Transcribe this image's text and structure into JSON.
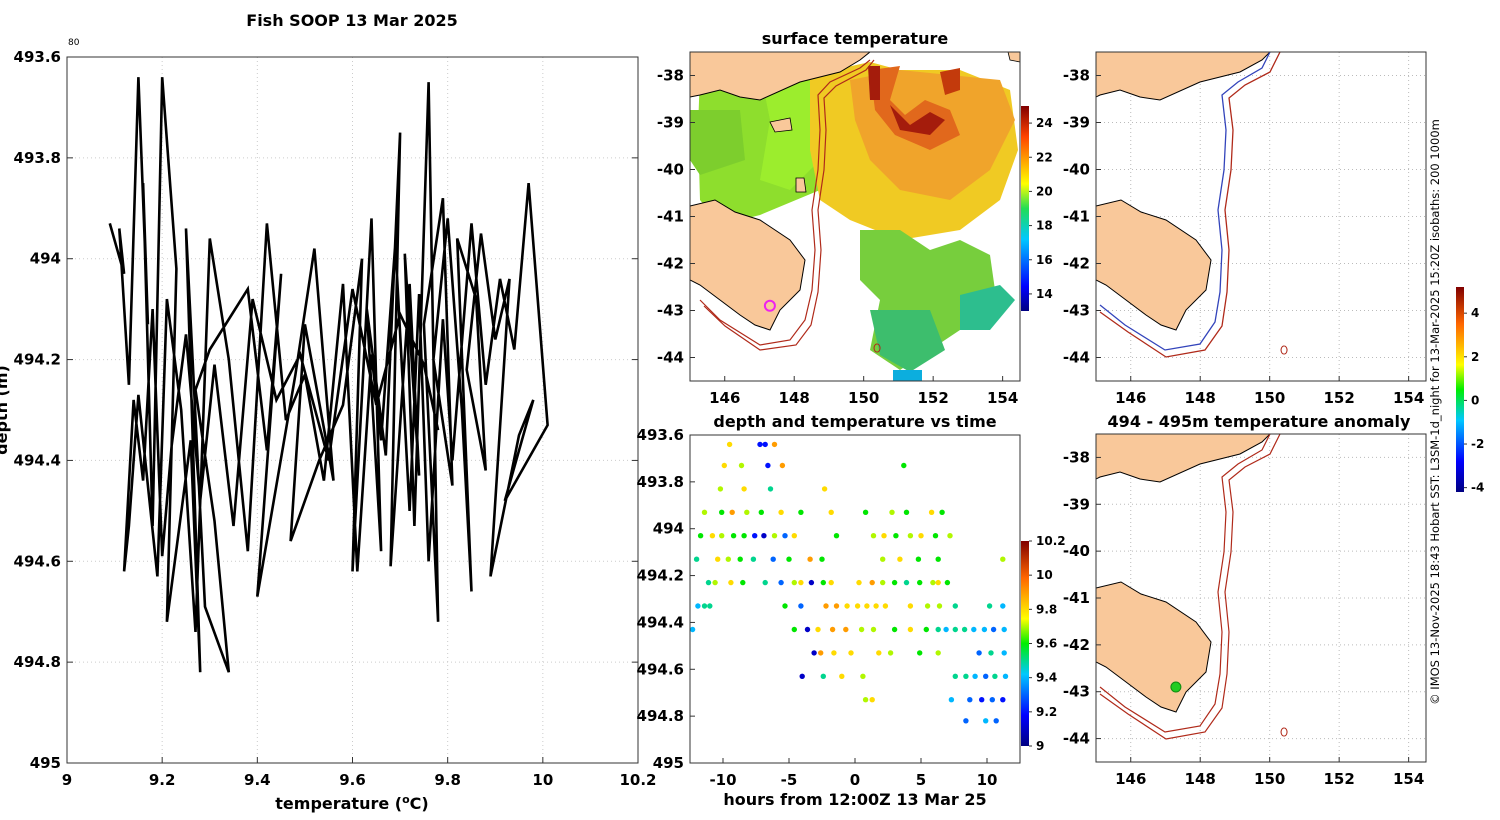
{
  "figure": {
    "credit": "© IMOS 13-Nov-2025 18:43 Hobart SST: L3SM-1d_night for 13-Mar-2025 15:20Z isobaths: 200  1000m",
    "exponent_label": "80"
  },
  "colors": {
    "land": "#f9c89a",
    "isobath_200": "#3344bb",
    "isobath_1000": "#b02a1a",
    "track": "#000000",
    "marker": "#ee22ee"
  },
  "chart_data": [
    {
      "id": "profile",
      "type": "line",
      "title": "Fish SOOP 13 Mar 2025",
      "xlabel": "temperature (",
      "xlabel_unit_sup": "o",
      "xlabel_unit": "C)",
      "ylabel": "depth (m)",
      "xlim": [
        9,
        10.2
      ],
      "ylim": [
        493.6,
        495
      ],
      "y_reversed": true,
      "grid": true,
      "x_ticks": [
        "9",
        "9.2",
        "9.4",
        "9.6",
        "9.8",
        "10",
        "10.2"
      ],
      "y_ticks": [
        "493.6",
        "493.8",
        "494",
        "494.2",
        "494.4",
        "494.6",
        "494.8",
        "495"
      ],
      "x": [
        9.09,
        9.12,
        9.11,
        9.13,
        9.15,
        9.17,
        9.16,
        9.18,
        9.2,
        9.23,
        9.21,
        9.26,
        9.28,
        9.25,
        9.29,
        9.34,
        9.31,
        9.27,
        9.3,
        9.38,
        9.42,
        9.45,
        9.4,
        9.48,
        9.52,
        9.56,
        9.5,
        9.47,
        9.53,
        9.58,
        9.62,
        9.6,
        9.64,
        9.66,
        9.63,
        9.67,
        9.7,
        9.68,
        9.72,
        9.74,
        9.71,
        9.73,
        9.76,
        9.78,
        9.75,
        9.79,
        9.81,
        9.77,
        9.8,
        9.83,
        9.85,
        9.82,
        9.86,
        9.88,
        9.84,
        9.87,
        9.9,
        9.93,
        9.89,
        9.95,
        9.98,
        9.92,
        10.01,
        9.97,
        9.94,
        9.91,
        9.88,
        9.85,
        9.81,
        9.79,
        9.76,
        9.74,
        9.72,
        9.69,
        9.66,
        9.64,
        9.61,
        9.58,
        9.54,
        9.5,
        9.46,
        9.42,
        9.38,
        9.34,
        9.3,
        9.27,
        9.24,
        9.21,
        9.19,
        9.17,
        9.15,
        9.13,
        9.12,
        9.14,
        9.16,
        9.18,
        9.2,
        9.22,
        9.25,
        9.28,
        9.31,
        9.35,
        9.39,
        9.44,
        9.49,
        9.55,
        9.6,
        9.65,
        9.7,
        9.75,
        9.78
      ],
      "y": [
        493.93,
        494.03,
        493.94,
        494.25,
        493.64,
        494.13,
        493.85,
        494.53,
        493.64,
        494.02,
        494.72,
        494.36,
        494.82,
        493.94,
        494.69,
        494.82,
        494.52,
        494.26,
        494.18,
        494.06,
        494.38,
        494.03,
        494.67,
        494.23,
        493.98,
        494.44,
        494.13,
        494.56,
        494.4,
        494.29,
        494.0,
        494.62,
        493.92,
        494.58,
        494.1,
        494.39,
        493.75,
        494.61,
        494.05,
        494.43,
        493.99,
        494.53,
        493.65,
        494.72,
        494.13,
        493.88,
        494.45,
        494.2,
        493.92,
        494.3,
        494.66,
        493.96,
        494.08,
        494.42,
        494.22,
        493.95,
        494.16,
        494.04,
        494.63,
        494.35,
        494.28,
        494.48,
        494.33,
        493.85,
        494.18,
        494.04,
        494.25,
        493.93,
        494.4,
        494.12,
        494.6,
        494.07,
        494.5,
        493.97,
        494.36,
        494.19,
        494.62,
        494.05,
        494.44,
        494.23,
        494.32,
        493.93,
        494.58,
        494.2,
        493.96,
        494.74,
        494.3,
        494.08,
        494.63,
        494.45,
        494.27,
        494.53,
        494.62,
        494.28,
        494.44,
        494.1,
        494.59,
        494.37,
        494.15,
        494.48,
        494.21,
        494.53,
        494.08,
        494.28,
        494.19,
        494.4,
        494.06,
        494.29,
        494.11,
        494.21,
        494.34
      ]
    },
    {
      "id": "sst_map",
      "type": "heatmap",
      "title": "surface temperature",
      "xlim": [
        145,
        154.5
      ],
      "ylim": [
        -44.5,
        -37.5
      ],
      "x_ticks": [
        "146",
        "148",
        "150",
        "152",
        "154"
      ],
      "y_ticks": [
        "-38",
        "-39",
        "-40",
        "-41",
        "-42",
        "-43",
        "-44"
      ],
      "colorbar": {
        "range": [
          13,
          25
        ],
        "ticks": [
          "14",
          "16",
          "18",
          "20",
          "22",
          "24"
        ]
      },
      "marker_position": {
        "lon": 147.3,
        "lat": -42.9
      }
    },
    {
      "id": "isobath_map",
      "type": "map",
      "title": "",
      "xlim": [
        145,
        154.5
      ],
      "ylim": [
        -44.5,
        -37.5
      ],
      "x_ticks": [
        "146",
        "148",
        "150",
        "152",
        "154"
      ],
      "y_ticks": [
        "-38",
        "-39",
        "-40",
        "-41",
        "-42",
        "-43",
        "-44"
      ]
    },
    {
      "id": "time_depth",
      "type": "scatter",
      "title": "depth and temperature vs time",
      "xlabel": "hours from 12:00Z 13 Mar 25",
      "ylabel": "",
      "xlim": [
        -12.5,
        12.5
      ],
      "ylim": [
        493.6,
        495
      ],
      "y_reversed": true,
      "x_ticks": [
        "-10",
        "-5",
        "0",
        "5",
        "10"
      ],
      "y_ticks": [
        "493.6",
        "493.8",
        "494",
        "494.2",
        "494.4",
        "494.6",
        "494.8",
        "495"
      ],
      "colorbar": {
        "range": [
          9.0,
          10.2
        ],
        "ticks": [
          "9",
          "9.2",
          "9.4",
          "9.6",
          "9.8",
          "10",
          "10.2"
        ]
      },
      "points": [
        [
          -9.5,
          493.64,
          9.8
        ],
        [
          -7.2,
          493.64,
          9.2
        ],
        [
          -6.8,
          493.64,
          9.2
        ],
        [
          -6.1,
          493.64,
          9.9
        ],
        [
          -9.9,
          493.73,
          9.8
        ],
        [
          -8.6,
          493.73,
          9.7
        ],
        [
          -6.6,
          493.73,
          9.2
        ],
        [
          -5.5,
          493.73,
          9.9
        ],
        [
          -10.2,
          493.83,
          9.7
        ],
        [
          -8.4,
          493.83,
          9.8
        ],
        [
          -6.4,
          493.83,
          9.5
        ],
        [
          -2.3,
          493.83,
          9.8
        ],
        [
          3.7,
          493.73,
          9.6
        ],
        [
          -11.4,
          493.93,
          9.7
        ],
        [
          -10.1,
          493.93,
          9.6
        ],
        [
          -9.3,
          493.93,
          9.9
        ],
        [
          -8.2,
          493.93,
          9.7
        ],
        [
          -7.1,
          493.93,
          9.6
        ],
        [
          -5.6,
          493.93,
          9.8
        ],
        [
          -4.1,
          493.93,
          9.6
        ],
        [
          -1.8,
          493.93,
          9.8
        ],
        [
          0.8,
          493.93,
          9.6
        ],
        [
          2.8,
          493.93,
          9.7
        ],
        [
          3.9,
          493.93,
          9.6
        ],
        [
          5.8,
          493.93,
          9.8
        ],
        [
          6.6,
          493.93,
          9.6
        ],
        [
          -11.7,
          494.03,
          9.6
        ],
        [
          -10.8,
          494.03,
          9.8
        ],
        [
          -10.1,
          494.03,
          9.7
        ],
        [
          -9.2,
          494.03,
          9.6
        ],
        [
          -8.4,
          494.03,
          9.6
        ],
        [
          -7.6,
          494.03,
          9.2
        ],
        [
          -6.9,
          494.03,
          9.1
        ],
        [
          -6.1,
          494.03,
          9.7
        ],
        [
          -5.3,
          494.03,
          9.3
        ],
        [
          -4.6,
          494.03,
          9.8
        ],
        [
          -1.4,
          494.03,
          9.6
        ],
        [
          1.4,
          494.03,
          9.7
        ],
        [
          2.2,
          494.03,
          9.8
        ],
        [
          3.1,
          494.03,
          9.6
        ],
        [
          4.2,
          494.03,
          9.7
        ],
        [
          5.0,
          494.03,
          9.8
        ],
        [
          6.1,
          494.03,
          9.6
        ],
        [
          7.2,
          494.03,
          9.7
        ],
        [
          -12.0,
          494.13,
          9.5
        ],
        [
          -10.4,
          494.13,
          9.8
        ],
        [
          -9.6,
          494.13,
          9.7
        ],
        [
          -8.7,
          494.13,
          9.6
        ],
        [
          -7.7,
          494.13,
          9.5
        ],
        [
          -6.2,
          494.13,
          9.3
        ],
        [
          -5.0,
          494.13,
          9.6
        ],
        [
          -3.4,
          494.13,
          9.9
        ],
        [
          -2.5,
          494.13,
          9.6
        ],
        [
          2.1,
          494.13,
          9.7
        ],
        [
          3.4,
          494.13,
          9.8
        ],
        [
          4.8,
          494.13,
          9.6
        ],
        [
          6.3,
          494.13,
          9.6
        ],
        [
          11.2,
          494.13,
          9.7
        ],
        [
          -11.1,
          494.23,
          9.5
        ],
        [
          -10.6,
          494.23,
          9.7
        ],
        [
          -9.4,
          494.23,
          9.8
        ],
        [
          -8.5,
          494.23,
          9.6
        ],
        [
          -6.8,
          494.23,
          9.5
        ],
        [
          -5.6,
          494.23,
          9.3
        ],
        [
          -4.6,
          494.23,
          9.7
        ],
        [
          -4.1,
          494.23,
          9.8
        ],
        [
          -3.3,
          494.23,
          9.1
        ],
        [
          -2.4,
          494.23,
          9.6
        ],
        [
          -1.8,
          494.23,
          9.8
        ],
        [
          0.3,
          494.23,
          9.8
        ],
        [
          1.3,
          494.23,
          9.9
        ],
        [
          2.1,
          494.23,
          9.7
        ],
        [
          3.0,
          494.23,
          9.6
        ],
        [
          3.9,
          494.23,
          9.5
        ],
        [
          4.9,
          494.23,
          9.6
        ],
        [
          5.9,
          494.23,
          9.7
        ],
        [
          6.3,
          494.23,
          9.8
        ],
        [
          7.0,
          494.23,
          9.6
        ],
        [
          -11.9,
          494.33,
          9.4
        ],
        [
          -11.4,
          494.33,
          9.5
        ],
        [
          -11.0,
          494.33,
          9.5
        ],
        [
          -5.3,
          494.33,
          9.6
        ],
        [
          -4.1,
          494.33,
          9.3
        ],
        [
          -2.2,
          494.33,
          9.9
        ],
        [
          -1.4,
          494.33,
          9.9
        ],
        [
          -0.6,
          494.33,
          9.8
        ],
        [
          0.2,
          494.33,
          9.8
        ],
        [
          0.9,
          494.33,
          9.8
        ],
        [
          1.6,
          494.33,
          9.8
        ],
        [
          2.3,
          494.33,
          9.8
        ],
        [
          4.2,
          494.33,
          9.8
        ],
        [
          5.5,
          494.33,
          9.7
        ],
        [
          6.4,
          494.33,
          9.7
        ],
        [
          7.6,
          494.33,
          9.5
        ],
        [
          10.2,
          494.33,
          9.5
        ],
        [
          11.2,
          494.33,
          9.4
        ],
        [
          -12.3,
          494.43,
          9.4
        ],
        [
          -4.6,
          494.43,
          9.6
        ],
        [
          -3.6,
          494.43,
          9.1
        ],
        [
          -2.8,
          494.43,
          9.8
        ],
        [
          -1.7,
          494.43,
          9.9
        ],
        [
          -0.7,
          494.43,
          9.9
        ],
        [
          0.5,
          494.43,
          9.7
        ],
        [
          1.4,
          494.43,
          9.7
        ],
        [
          3.0,
          494.43,
          9.6
        ],
        [
          4.2,
          494.43,
          9.8
        ],
        [
          5.4,
          494.43,
          9.6
        ],
        [
          6.3,
          494.43,
          9.5
        ],
        [
          6.9,
          494.43,
          9.4
        ],
        [
          7.6,
          494.43,
          9.5
        ],
        [
          8.3,
          494.43,
          9.5
        ],
        [
          9.0,
          494.43,
          9.4
        ],
        [
          9.8,
          494.43,
          9.4
        ],
        [
          10.5,
          494.43,
          9.3
        ],
        [
          11.3,
          494.43,
          9.4
        ],
        [
          -3.1,
          494.53,
          9.1
        ],
        [
          -2.6,
          494.53,
          9.9
        ],
        [
          -1.6,
          494.53,
          9.8
        ],
        [
          -0.3,
          494.53,
          9.8
        ],
        [
          1.8,
          494.53,
          9.8
        ],
        [
          2.7,
          494.53,
          9.7
        ],
        [
          4.9,
          494.53,
          9.6
        ],
        [
          6.3,
          494.53,
          9.7
        ],
        [
          9.4,
          494.53,
          9.3
        ],
        [
          10.3,
          494.53,
          9.5
        ],
        [
          11.3,
          494.53,
          9.4
        ],
        [
          -4.0,
          494.63,
          9.1
        ],
        [
          -2.4,
          494.63,
          9.5
        ],
        [
          -1.0,
          494.63,
          9.8
        ],
        [
          0.6,
          494.63,
          9.7
        ],
        [
          7.6,
          494.63,
          9.5
        ],
        [
          8.4,
          494.63,
          9.5
        ],
        [
          9.1,
          494.63,
          9.4
        ],
        [
          9.9,
          494.63,
          9.3
        ],
        [
          10.6,
          494.63,
          9.5
        ],
        [
          11.4,
          494.63,
          9.4
        ],
        [
          0.8,
          494.73,
          9.7
        ],
        [
          1.3,
          494.73,
          9.8
        ],
        [
          7.3,
          494.73,
          9.4
        ],
        [
          8.7,
          494.73,
          9.3
        ],
        [
          9.6,
          494.73,
          9.2
        ],
        [
          10.4,
          494.73,
          9.3
        ],
        [
          11.2,
          494.73,
          9.2
        ],
        [
          8.4,
          494.82,
          9.3
        ],
        [
          9.9,
          494.82,
          9.4
        ],
        [
          10.7,
          494.82,
          9.3
        ]
      ]
    },
    {
      "id": "anomaly_map",
      "type": "heatmap",
      "title": "494 - 495m temperature anomaly",
      "xlim": [
        145,
        154.5
      ],
      "ylim": [
        -44.5,
        -37.5
      ],
      "x_ticks": [
        "146",
        "148",
        "150",
        "152",
        "154"
      ],
      "y_ticks": [
        "-38",
        "-39",
        "-40",
        "-41",
        "-42",
        "-43",
        "-44"
      ],
      "colorbar": {
        "range": [
          -4.2,
          5.2
        ],
        "ticks": [
          "4",
          "2",
          "0",
          "-2",
          "-4"
        ]
      },
      "marker_position": {
        "lon": 147.3,
        "lat": -42.9
      }
    }
  ]
}
